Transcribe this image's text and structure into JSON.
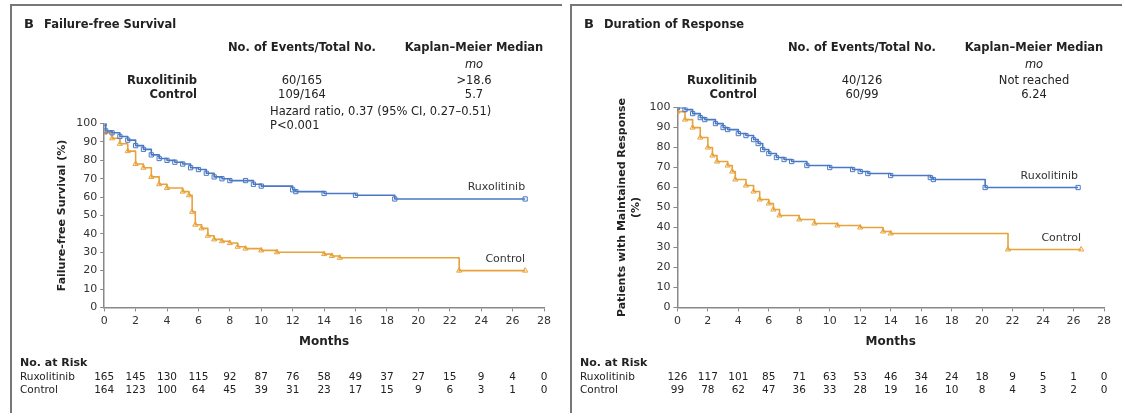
{
  "chart_data": [
    {
      "type": "step",
      "title": "Failure-free Survival",
      "xlabel": "Months",
      "ylabel": "Failure-free Survival (%)",
      "xlim": [
        0,
        28
      ],
      "xticks": [
        0,
        2,
        4,
        6,
        8,
        10,
        12,
        14,
        16,
        18,
        20,
        22,
        24,
        26,
        28
      ],
      "ylim": [
        0,
        100
      ],
      "yticks": [
        0,
        10,
        20,
        30,
        40,
        50,
        60,
        70,
        80,
        90,
        100
      ],
      "series": [
        {
          "name": "Ruxolitinib",
          "color": "#4a78c2",
          "marker": "square",
          "x": [
            0,
            0.1,
            0.5,
            1,
            1.5,
            2,
            2.5,
            3,
            3.5,
            4,
            4.5,
            5,
            5.5,
            6,
            6.5,
            7,
            7.5,
            8,
            9,
            9.5,
            10,
            12,
            12.2,
            14,
            16,
            18.5,
            26.8
          ],
          "values": [
            100,
            96,
            95,
            93,
            91,
            88,
            86,
            83,
            81,
            80,
            79,
            78,
            76,
            75,
            73,
            71,
            70,
            69,
            69,
            67,
            66,
            64,
            63,
            62,
            61,
            59,
            59
          ]
        },
        {
          "name": "Control",
          "color": "#e8a23a",
          "marker": "triangle",
          "x": [
            0,
            0.5,
            1,
            1.5,
            2,
            2.5,
            3,
            3.5,
            4,
            5,
            5.4,
            5.6,
            5.8,
            6.2,
            6.6,
            7,
            7.5,
            8,
            8.5,
            9,
            10,
            11,
            14,
            14.5,
            15,
            22.6,
            26.8
          ],
          "values": [
            95,
            92,
            89,
            85,
            78,
            76,
            71,
            67,
            65,
            63,
            61,
            52,
            45,
            43,
            39,
            37,
            36,
            35,
            33,
            32,
            31,
            30,
            29,
            28,
            27,
            20,
            20
          ]
        }
      ],
      "annotations": [
        "B",
        "No. of Events/Total No.",
        "Kaplan–Meier Median",
        "mo",
        "Ruxolitinib",
        "60/165",
        ">18.6",
        "Control",
        "109/164",
        "5.7",
        "Hazard ratio, 0.37 (95% CI, 0.27–0.51)",
        "P<0.001",
        "No. at Risk",
        "Ruxolitinib 165 145 130 115 92 87 76 58 49 37 27 15 9 4 0",
        "Control 164 123 100 64 45 39 31 23 17 15 9 6 3 1 0"
      ]
    },
    {
      "type": "step",
      "title": "Duration of Response",
      "xlabel": "Months",
      "ylabel": "Patients with Maintained Response (%)",
      "xlim": [
        0,
        28
      ],
      "xticks": [
        0,
        2,
        4,
        6,
        8,
        10,
        12,
        14,
        16,
        18,
        20,
        22,
        24,
        26,
        28
      ],
      "ylim": [
        0,
        100
      ],
      "yticks": [
        0,
        10,
        20,
        30,
        40,
        50,
        60,
        70,
        80,
        90,
        100
      ],
      "series": [
        {
          "name": "Ruxolitinib",
          "color": "#4a78c2",
          "marker": "square",
          "x": [
            0,
            0.5,
            1,
            1.5,
            1.8,
            2.5,
            3,
            3.3,
            4,
            4.5,
            5,
            5.3,
            5.6,
            6,
            6.5,
            7,
            7.5,
            8.5,
            10,
            11.5,
            12,
            12.5,
            14,
            16.6,
            16.8,
            20.2,
            26.3
          ],
          "values": [
            100,
            99,
            97,
            95,
            94,
            92,
            90,
            89,
            87,
            86,
            84,
            82,
            79,
            77,
            75,
            74,
            73,
            71,
            70,
            69,
            68,
            67,
            66,
            65,
            64,
            60,
            60
          ]
        },
        {
          "name": "Control",
          "color": "#e8a23a",
          "marker": "triangle",
          "x": [
            0,
            0.5,
            1,
            1.5,
            2,
            2.3,
            2.6,
            3.3,
            3.6,
            3.8,
            4.5,
            5,
            5.4,
            6,
            6.3,
            6.7,
            8,
            9,
            10.5,
            12,
            13.5,
            14,
            21.7,
            26.5
          ],
          "values": [
            98,
            94,
            90,
            85,
            80,
            76,
            73,
            71,
            68,
            64,
            61,
            58,
            54,
            52,
            49,
            46,
            44,
            42,
            41,
            40,
            38,
            37,
            29,
            29
          ]
        }
      ],
      "annotations": [
        "B",
        "No. of Events/Total No.",
        "Kaplan–Meier Median",
        "mo",
        "Ruxolitinib",
        "40/126",
        "Not reached",
        "Control",
        "60/99",
        "6.24",
        "No. at Risk",
        "Ruxolitinib 126 117 101 85 71 63 53 46 34 24 18 9 5 1 0",
        "Control 99 78 62 47 36 33 28 19 16 10 8 4 3 2 0"
      ]
    }
  ]
}
